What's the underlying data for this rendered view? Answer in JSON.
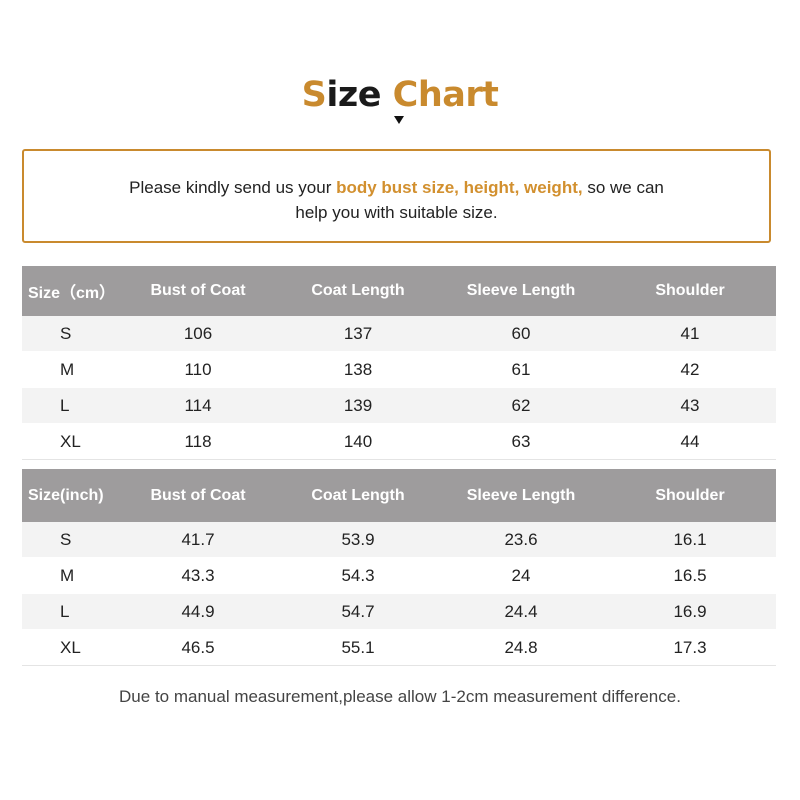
{
  "title": {
    "word1_first_letter": "S",
    "word1_rest": "ize",
    "word2": "Chart"
  },
  "notice": {
    "text_before": "Please kindly send us your ",
    "highlight": "body bust size, height, weight,",
    "text_after": " so we can",
    "line2": "help you with suitable size."
  },
  "table_cm": {
    "headers": [
      "Size（cm）",
      "Bust of Coat",
      "Coat Length",
      "Sleeve Length",
      "Shoulder"
    ],
    "rows": [
      [
        "S",
        "106",
        "137",
        "60",
        "41"
      ],
      [
        "M",
        "110",
        "138",
        "61",
        "42"
      ],
      [
        "L",
        "114",
        "139",
        "62",
        "43"
      ],
      [
        "XL",
        "118",
        "140",
        "63",
        "44"
      ]
    ]
  },
  "table_inch": {
    "headers": [
      "Size(inch)",
      "Bust of Coat",
      "Coat Length",
      "Sleeve Length",
      "Shoulder"
    ],
    "rows": [
      [
        "S",
        "41.7",
        "53.9",
        "23.6",
        "16.1"
      ],
      [
        "M",
        "43.3",
        "54.3",
        "24",
        "16.5"
      ],
      [
        "L",
        "44.9",
        "54.7",
        "24.4",
        "16.9"
      ],
      [
        "XL",
        "46.5",
        "55.1",
        "24.8",
        "17.3"
      ]
    ]
  },
  "footnote": "Due to manual measurement,please allow 1-2cm measurement difference.",
  "colors": {
    "accent": "#c98a2e",
    "header_bg": "#9e9c9d",
    "row_alt_bg": "#f3f3f3"
  }
}
